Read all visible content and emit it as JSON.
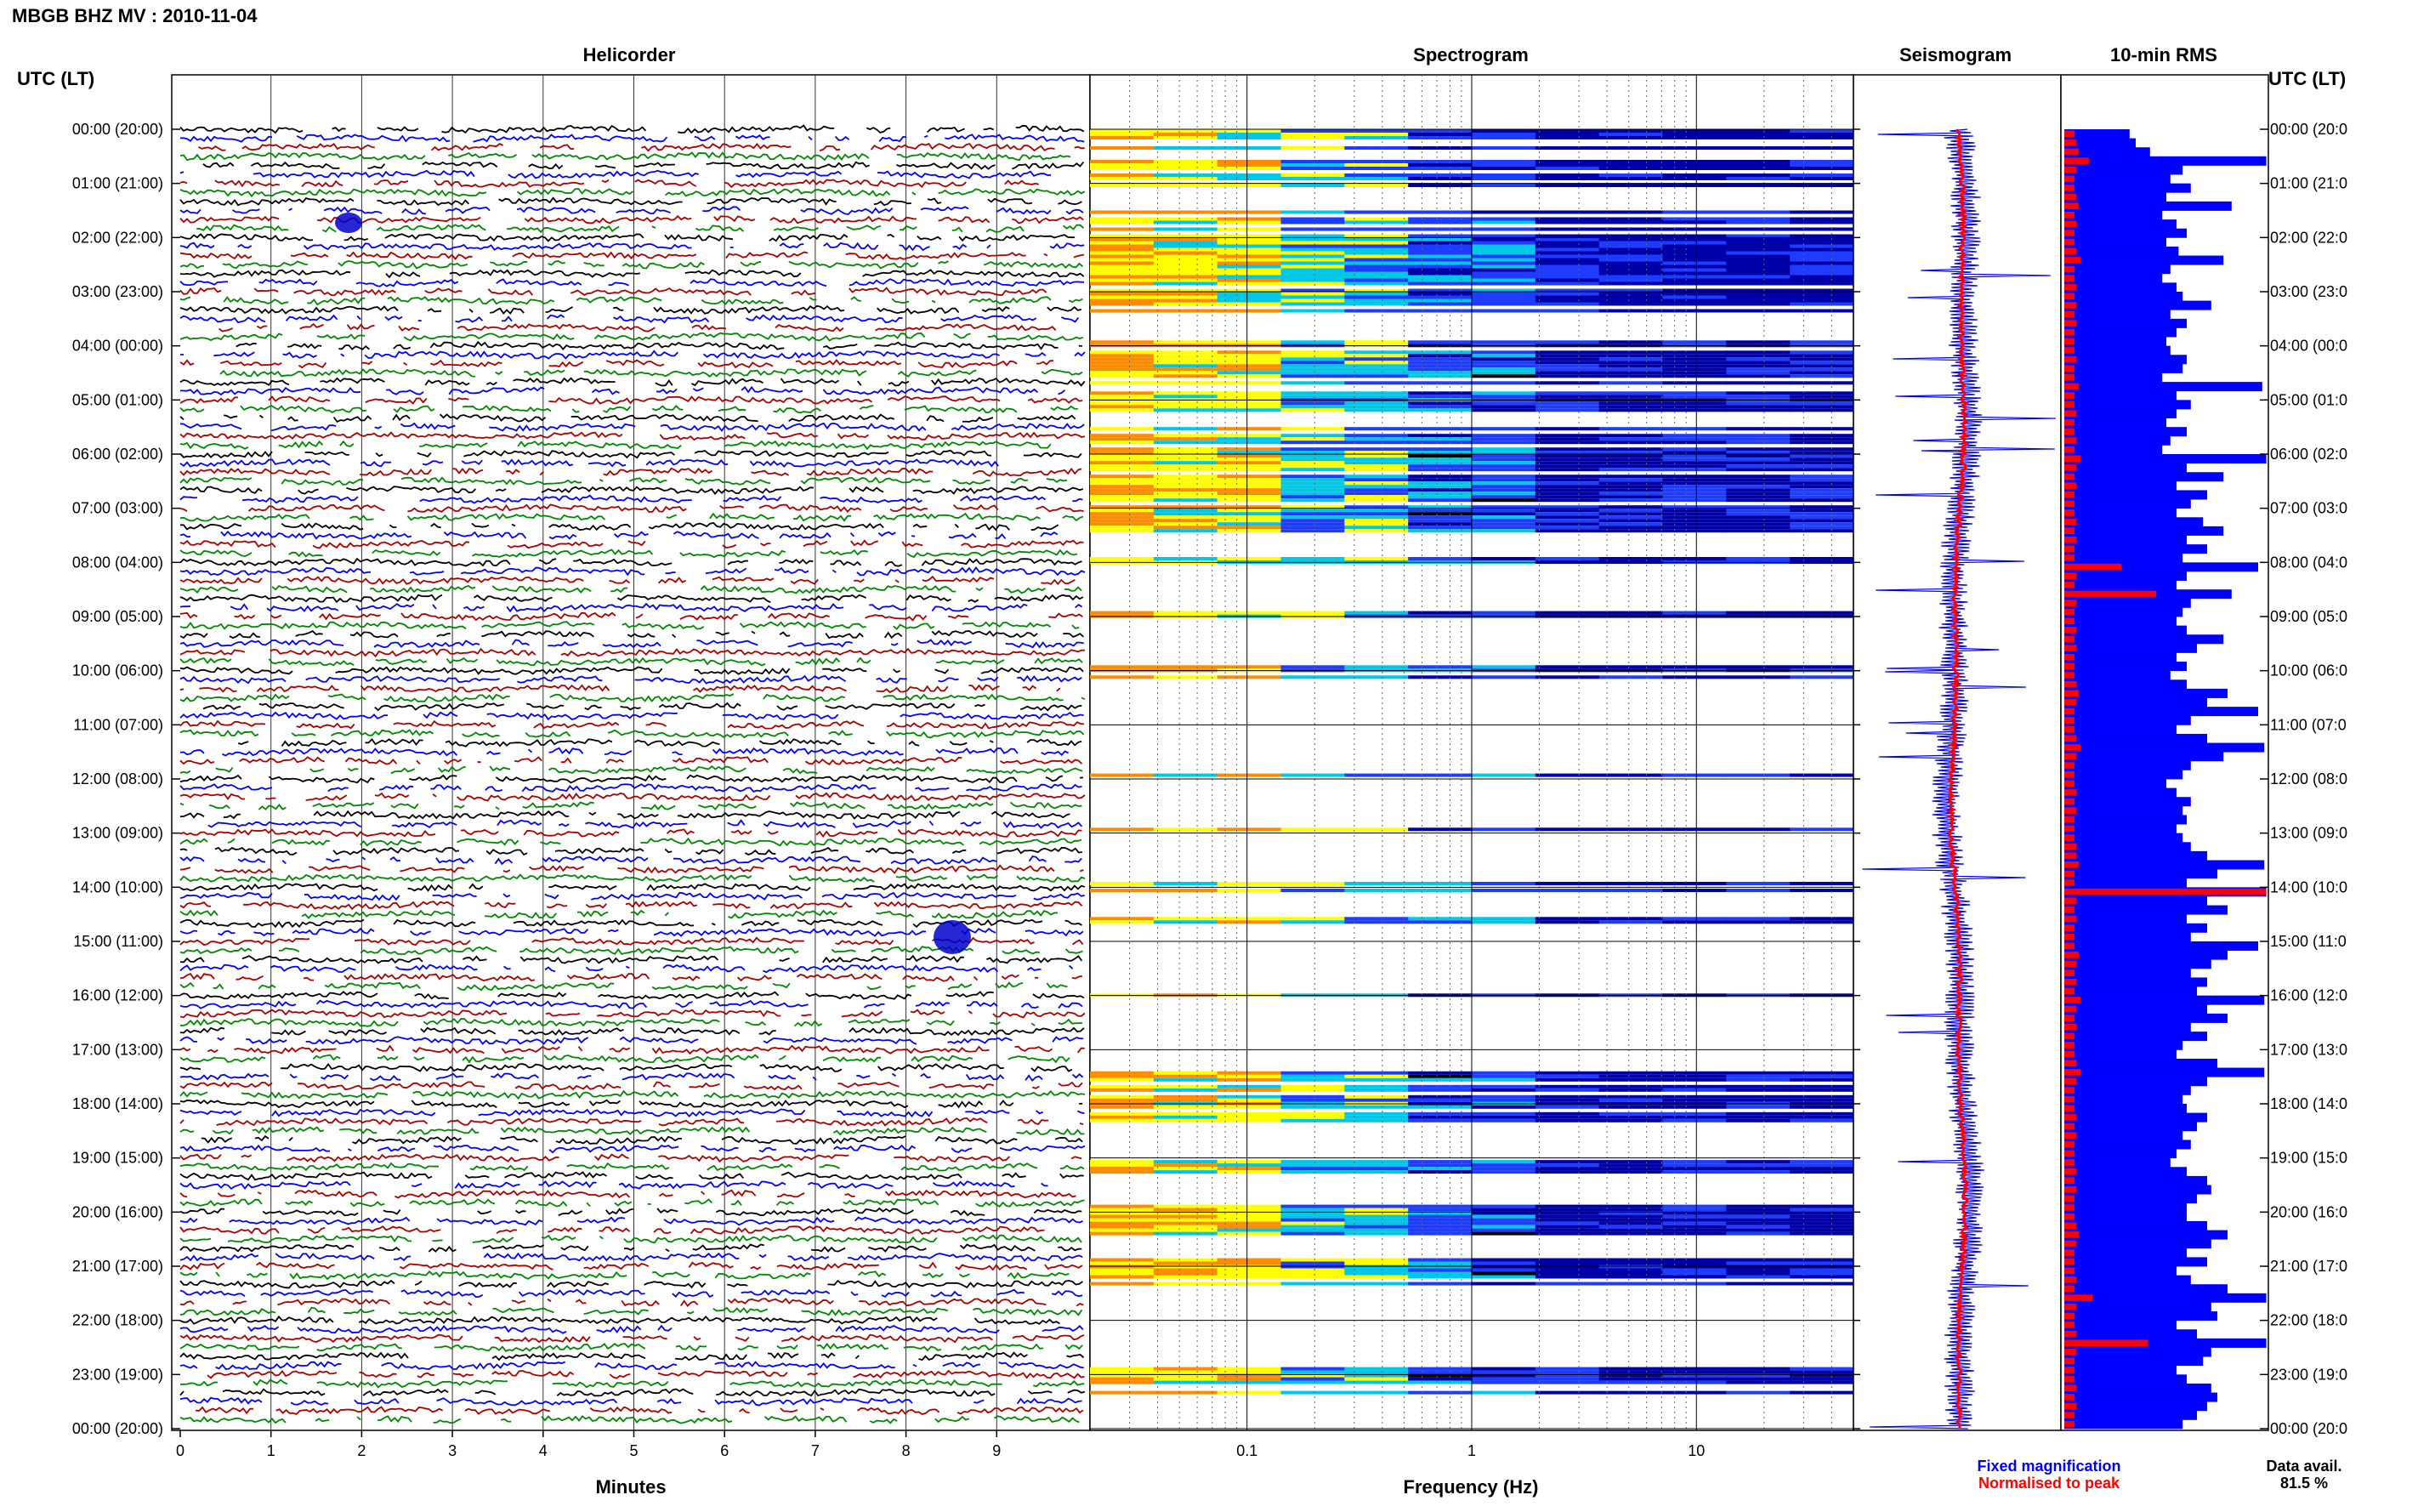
{
  "title": "MBGB BHZ MV : 2010-11-04",
  "time_axis_label": "UTC (LT)",
  "hour_labels": [
    "00:00 (20:00)",
    "01:00 (21:00)",
    "02:00 (22:00)",
    "03:00 (23:00)",
    "04:00 (00:00)",
    "05:00 (01:00)",
    "06:00 (02:00)",
    "07:00 (03:00)",
    "08:00 (04:00)",
    "09:00 (05:00)",
    "10:00 (06:00)",
    "11:00 (07:00)",
    "12:00 (08:00)",
    "13:00 (09:00)",
    "14:00 (10:00)",
    "15:00 (11:00)",
    "16:00 (12:00)",
    "17:00 (13:00)",
    "18:00 (14:00)",
    "19:00 (15:00)",
    "20:00 (16:00)",
    "21:00 (17:00)",
    "22:00 (18:00)",
    "23:00 (19:00)",
    "00:00 (20:00)"
  ],
  "right_hour_labels": [
    "00:00 (20:0",
    "01:00 (21:0",
    "02:00 (22:0",
    "03:00 (23:0",
    "04:00 (00:0",
    "05:00 (01:0",
    "06:00 (02:0",
    "07:00 (03:0",
    "08:00 (04:0",
    "09:00 (05:0",
    "10:00 (06:0",
    "11:00 (07:0",
    "12:00 (08:0",
    "13:00 (09:0",
    "14:00 (10:0",
    "15:00 (11:0",
    "16:00 (12:0",
    "17:00 (13:0",
    "18:00 (14:0",
    "19:00 (15:0",
    "20:00 (16:0",
    "21:00 (17:0",
    "22:00 (18:0",
    "23:00 (19:0",
    "00:00 (20:0"
  ],
  "legend": {
    "fixed": "Fixed magnification",
    "normalised": "Normalised to peak",
    "data_avail_label": "Data avail.",
    "data_avail_value": "81.5 %",
    "fixed_color": "#0000ff",
    "normalised_color": "#ff0000"
  },
  "chart_data": [
    {
      "type": "line",
      "panel": "helicorder",
      "title": "Helicorder",
      "xlabel": "Minutes",
      "x_ticks": [
        "0",
        "1",
        "2",
        "3",
        "4",
        "5",
        "6",
        "7",
        "8",
        "9"
      ],
      "xlim": [
        0,
        10
      ],
      "rows": 144,
      "trace_colors": [
        "#000000",
        "#0000ff",
        "#aa0000",
        "#008800"
      ]
    },
    {
      "type": "heatmap",
      "panel": "spectrogram",
      "title": "Spectrogram",
      "xlabel": "Frequency (Hz)",
      "x_scale": "log",
      "xlim": [
        0.02,
        50
      ],
      "x_ticks": [
        "0.1",
        "1",
        "10"
      ],
      "colormap": [
        "#ffffff",
        "#0000a8",
        "#1e3cff",
        "#00c8e6",
        "#ffff00",
        "#ff8c00"
      ],
      "active_segments_hours": [
        [
          0.0,
          1.1
        ],
        [
          1.5,
          3.4
        ],
        [
          3.9,
          5.2
        ],
        [
          5.5,
          7.5
        ],
        [
          7.9,
          8.1
        ],
        [
          8.9,
          9.0
        ],
        [
          9.9,
          10.1
        ],
        [
          11.9,
          12.0
        ],
        [
          12.9,
          12.95
        ],
        [
          13.9,
          14.05
        ],
        [
          14.55,
          14.65
        ],
        [
          15.9,
          16.0
        ],
        [
          17.4,
          18.3
        ],
        [
          18.85,
          19.3
        ],
        [
          19.8,
          20.4
        ],
        [
          20.85,
          21.3
        ],
        [
          22.8,
          23.4
        ]
      ]
    },
    {
      "type": "line",
      "panel": "seismogram",
      "title": "Seismogram",
      "series": [
        {
          "name": "Fixed magnification",
          "color": "#0000ff"
        },
        {
          "name": "Normalised to peak",
          "color": "#ff0000"
        }
      ]
    },
    {
      "type": "bar",
      "panel": "rms",
      "title": "10-min RMS",
      "orientation": "horizontal",
      "bins_per_hour": 6,
      "series": [
        {
          "name": "Fixed magnification",
          "color": "#0000ff",
          "values": [
            0.32,
            0.35,
            0.42,
            0.99,
            0.58,
            0.52,
            0.62,
            0.5,
            0.82,
            0.48,
            0.55,
            0.6,
            0.5,
            0.56,
            0.78,
            0.52,
            0.48,
            0.55,
            0.58,
            0.72,
            0.52,
            0.6,
            0.55,
            0.5,
            0.52,
            0.6,
            0.58,
            0.48,
            0.97,
            0.55,
            0.62,
            0.55,
            0.5,
            0.6,
            0.52,
            0.48,
            0.99,
            0.6,
            0.78,
            0.55,
            0.7,
            0.62,
            0.55,
            0.68,
            0.78,
            0.6,
            0.7,
            0.58,
            0.95,
            0.6,
            0.55,
            0.82,
            0.62,
            0.58,
            0.55,
            0.6,
            0.78,
            0.65,
            0.55,
            0.6,
            0.52,
            0.6,
            0.8,
            0.7,
            0.95,
            0.62,
            0.55,
            0.7,
            0.98,
            0.78,
            0.62,
            0.58,
            0.5,
            0.55,
            0.62,
            0.58,
            0.6,
            0.55,
            0.58,
            0.62,
            0.7,
            0.98,
            0.75,
            0.6,
            0.99,
            0.7,
            0.8,
            0.6,
            0.7,
            0.62,
            0.95,
            0.8,
            0.72,
            0.62,
            0.7,
            0.65,
            0.98,
            0.7,
            0.8,
            0.62,
            0.7,
            0.58,
            0.55,
            0.75,
            0.98,
            0.7,
            0.62,
            0.58,
            0.6,
            0.7,
            0.65,
            0.58,
            0.62,
            0.55,
            0.52,
            0.6,
            0.7,
            0.72,
            0.65,
            0.6,
            0.6,
            0.7,
            0.8,
            0.72,
            0.6,
            0.7,
            0.55,
            0.62,
            0.8,
            0.99,
            0.72,
            0.75,
            0.55,
            0.65,
            0.99,
            0.72,
            0.68,
            0.55,
            0.6,
            0.72,
            0.75,
            0.7,
            0.65,
            0.58
          ]
        },
        {
          "name": "Normalised to peak",
          "color": "#ff0000",
          "values": [
            0.05,
            0.06,
            0.07,
            0.12,
            0.06,
            0.05,
            0.05,
            0.06,
            0.07,
            0.05,
            0.06,
            0.05,
            0.05,
            0.06,
            0.08,
            0.05,
            0.05,
            0.06,
            0.05,
            0.06,
            0.05,
            0.06,
            0.05,
            0.05,
            0.05,
            0.06,
            0.05,
            0.05,
            0.07,
            0.05,
            0.05,
            0.06,
            0.05,
            0.05,
            0.06,
            0.05,
            0.08,
            0.06,
            0.05,
            0.06,
            0.05,
            0.05,
            0.05,
            0.06,
            0.05,
            0.06,
            0.05,
            0.05,
            0.28,
            0.06,
            0.05,
            0.45,
            0.06,
            0.05,
            0.05,
            0.06,
            0.05,
            0.06,
            0.05,
            0.05,
            0.05,
            0.06,
            0.07,
            0.06,
            0.05,
            0.05,
            0.05,
            0.06,
            0.08,
            0.06,
            0.05,
            0.05,
            0.05,
            0.06,
            0.05,
            0.06,
            0.05,
            0.05,
            0.05,
            0.06,
            0.06,
            0.07,
            0.05,
            0.05,
            0.99,
            0.06,
            0.05,
            0.06,
            0.05,
            0.05,
            0.05,
            0.07,
            0.06,
            0.05,
            0.06,
            0.05,
            0.08,
            0.06,
            0.05,
            0.06,
            0.05,
            0.05,
            0.05,
            0.06,
            0.08,
            0.06,
            0.05,
            0.05,
            0.05,
            0.06,
            0.05,
            0.06,
            0.05,
            0.05,
            0.05,
            0.06,
            0.05,
            0.06,
            0.05,
            0.05,
            0.05,
            0.06,
            0.07,
            0.06,
            0.05,
            0.05,
            0.05,
            0.06,
            0.05,
            0.14,
            0.06,
            0.05,
            0.05,
            0.06,
            0.41,
            0.06,
            0.05,
            0.05,
            0.05,
            0.06,
            0.05,
            0.06,
            0.05,
            0.05
          ]
        }
      ]
    }
  ]
}
